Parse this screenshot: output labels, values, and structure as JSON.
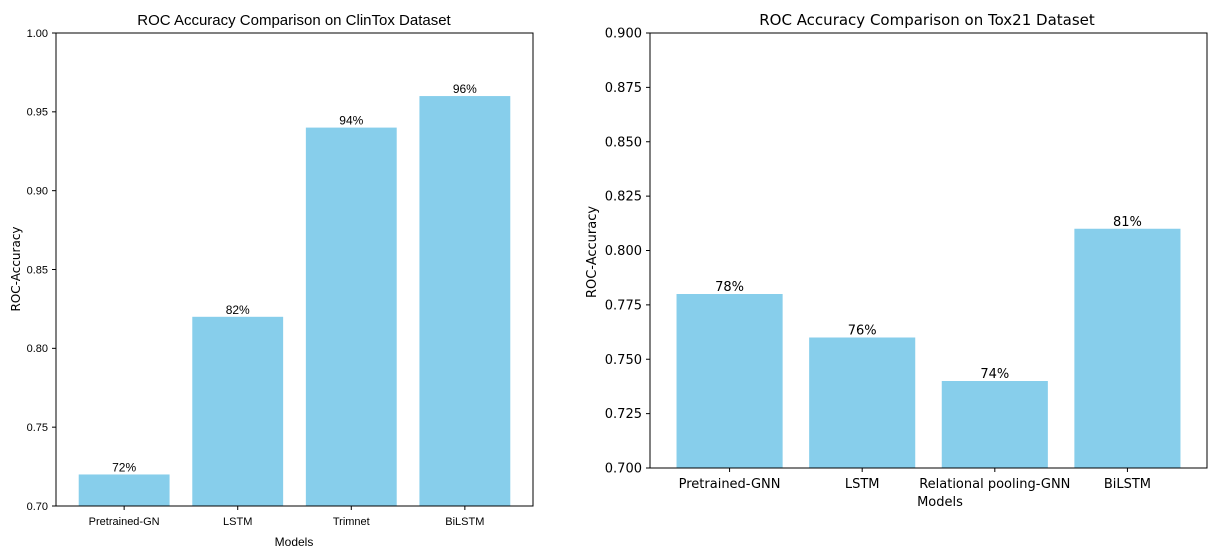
{
  "chart_data": [
    {
      "type": "bar",
      "title": "ROC Accuracy Comparison on ClinTox Dataset",
      "xlabel": "Models",
      "ylabel": "ROC-Accuracy",
      "categories": [
        "Pretrained-GN",
        "LSTM",
        "Trimnet",
        "BiLSTM"
      ],
      "values": [
        0.72,
        0.82,
        0.94,
        0.96
      ],
      "data_labels": [
        "72%",
        "82%",
        "94%",
        "96%"
      ],
      "ylim": [
        0.7,
        1.0
      ],
      "yticks": [
        "0.70",
        "0.75",
        "0.80",
        "0.85",
        "0.90",
        "0.95",
        "1.00"
      ],
      "bar_color": "#87ceeb",
      "grid": false,
      "legend": "none"
    },
    {
      "type": "bar",
      "title": "ROC Accuracy Comparison on Tox21 Dataset",
      "xlabel": "Models",
      "ylabel": "ROC-Accuracy",
      "categories": [
        "Pretrained-GNN",
        "LSTM",
        "Relational pooling-GNN",
        "BiLSTM"
      ],
      "values": [
        0.78,
        0.76,
        0.74,
        0.81
      ],
      "data_labels": [
        "78%",
        "76%",
        "74%",
        "81%"
      ],
      "ylim": [
        0.7,
        0.9
      ],
      "yticks": [
        "0.700",
        "0.725",
        "0.750",
        "0.775",
        "0.800",
        "0.825",
        "0.850",
        "0.875",
        "0.900"
      ],
      "bar_color": "#87ceeb",
      "grid": false,
      "legend": "none"
    }
  ]
}
